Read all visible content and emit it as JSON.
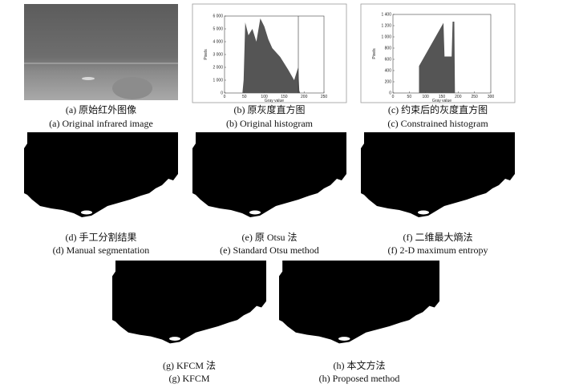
{
  "figure": {
    "panels": [
      {
        "label_zh": "(a) 原始红外图像",
        "label_en": "(a) Original infrared image"
      },
      {
        "label_zh": "(b) 原灰度直方图",
        "label_en": "(b) Original histogram",
        "histogram": {
          "ylabel": "Pixels",
          "xlabel": "Gray value",
          "yticks": [
            "6 000",
            "5 000",
            "4 000",
            "3 000",
            "2 000",
            "1 000",
            "0"
          ],
          "xticks": [
            "0",
            "50",
            "100",
            "150",
            "200",
            "250"
          ]
        }
      },
      {
        "label_zh": "(c) 约束后的灰度直方图",
        "label_en": "(c) Constrained histogram",
        "histogram": {
          "ylabel": "Pixels",
          "xlabel": "Gray value",
          "yticks": [
            "1 400",
            "1 200",
            "1 000",
            "800",
            "600",
            "400",
            "200",
            "0"
          ],
          "xticks": [
            "0",
            "50",
            "100",
            "150",
            "200",
            "250",
            "300"
          ]
        }
      },
      {
        "label_zh": "(d) 手工分割结果",
        "label_en": "(d) Manual segmentation"
      },
      {
        "label_zh": "(e) 原 Otsu 法",
        "label_en": "(e) Standard Otsu method"
      },
      {
        "label_zh": "(f) 二维最大熵法",
        "label_en": "(f) 2-D maximum entropy"
      },
      {
        "label_zh": "(g) KFCM 法",
        "label_en": "(g) KFCM"
      },
      {
        "label_zh": "(h) 本文方法",
        "label_en": "(h) Proposed method"
      }
    ]
  }
}
